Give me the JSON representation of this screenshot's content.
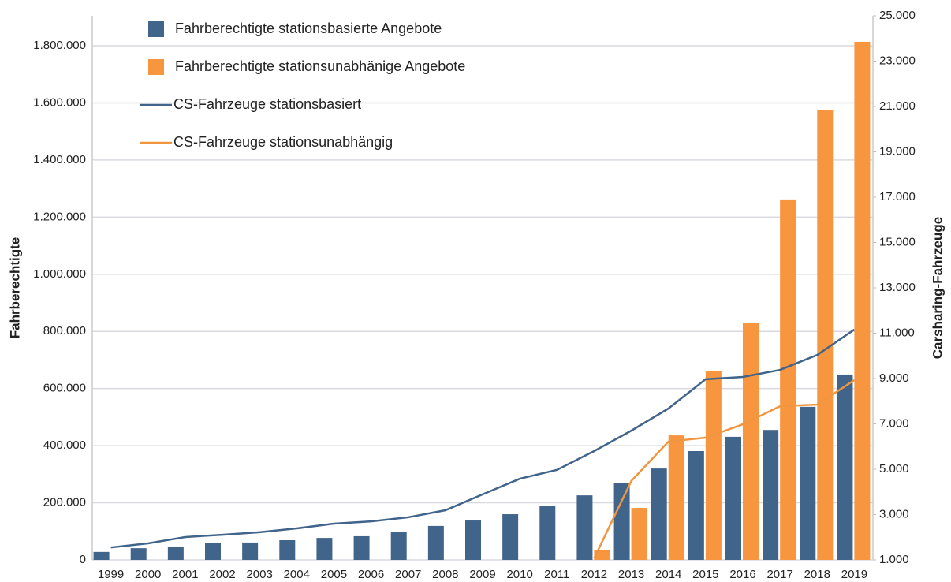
{
  "chart_data": {
    "type": "bar",
    "y_label": "Fahrberechtigte",
    "y2_label": "Carsharing-Fahrzeuge",
    "categories": [
      "1999",
      "2000",
      "2001",
      "2002",
      "2003",
      "2004",
      "2005",
      "2006",
      "2007",
      "2008",
      "2009",
      "2010",
      "2011",
      "2012",
      "2013",
      "2014",
      "2015",
      "2016",
      "2017",
      "2018",
      "2019"
    ],
    "series": [
      {
        "name": "Fahrberechtigte stationsbasierte Angebote",
        "type": "bar",
        "color": "#41648a",
        "values": [
          28000,
          41000,
          47000,
          58000,
          61000,
          69000,
          77000,
          83000,
          97000,
          119000,
          138000,
          160000,
          190000,
          226000,
          270000,
          320000,
          381000,
          431000,
          455000,
          536000,
          649000
        ]
      },
      {
        "name": "Fahrberechtigte stationsunabhänige Angebote",
        "type": "bar",
        "color": "#f7963f",
        "values": [
          null,
          null,
          null,
          null,
          null,
          null,
          null,
          null,
          null,
          null,
          null,
          null,
          null,
          36000,
          182000,
          436000,
          660000,
          831000,
          1262000,
          1576000,
          1814000
        ]
      },
      {
        "name": "CS-Fahrzeuge stationsbasiert",
        "type": "line",
        "axis": "y2",
        "color": "#41648a",
        "values": [
          1550,
          1730,
          2010,
          2110,
          2220,
          2390,
          2600,
          2700,
          2880,
          3190,
          3890,
          4580,
          4970,
          5800,
          6700,
          7680,
          8970,
          9070,
          9380,
          10040,
          11160
        ]
      },
      {
        "name": "CS-Fahrzeuge stationsunabhängig",
        "type": "line",
        "axis": "y2",
        "color": "#f0963f",
        "values": [
          null,
          null,
          null,
          null,
          null,
          null,
          null,
          null,
          null,
          null,
          null,
          null,
          null,
          1070,
          4480,
          6220,
          6390,
          6980,
          7780,
          7850,
          8930
        ]
      }
    ],
    "ylim": [
      0,
      1905000
    ],
    "yticks": [
      0,
      {
        "value": 200000,
        "label": "200.000"
      },
      {
        "value": 400000,
        "label": "400.000"
      },
      {
        "value": 600000,
        "label": "600.000"
      },
      {
        "value": 800000,
        "label": "800.000"
      },
      {
        "value": 1000000,
        "label": "1.000.000"
      },
      {
        "value": 1200000,
        "label": "1.200.000"
      },
      {
        "value": 1400000,
        "label": "1.400.000"
      },
      {
        "value": 1600000,
        "label": "1.600.000"
      },
      {
        "value": 1800000,
        "label": "1.800.000"
      }
    ],
    "y2lim": [
      1000,
      25000
    ],
    "y2ticks": [
      {
        "value": 1000,
        "label": "1.000"
      },
      {
        "value": 3000,
        "label": "3.000"
      },
      {
        "value": 5000,
        "label": "5.000"
      },
      {
        "value": 7000,
        "label": "7.000"
      },
      {
        "value": 9000,
        "label": "9.000"
      },
      {
        "value": 11000,
        "label": "11.000"
      },
      {
        "value": 13000,
        "label": "13.000"
      },
      {
        "value": 15000,
        "label": "15.000"
      },
      {
        "value": 17000,
        "label": "17.000"
      },
      {
        "value": 19000,
        "label": "19.000"
      },
      {
        "value": 21000,
        "label": "21.000"
      },
      {
        "value": 23000,
        "label": "23.000"
      },
      {
        "value": 25000,
        "label": "25.000"
      }
    ],
    "grid": true,
    "legend": "top-left"
  }
}
